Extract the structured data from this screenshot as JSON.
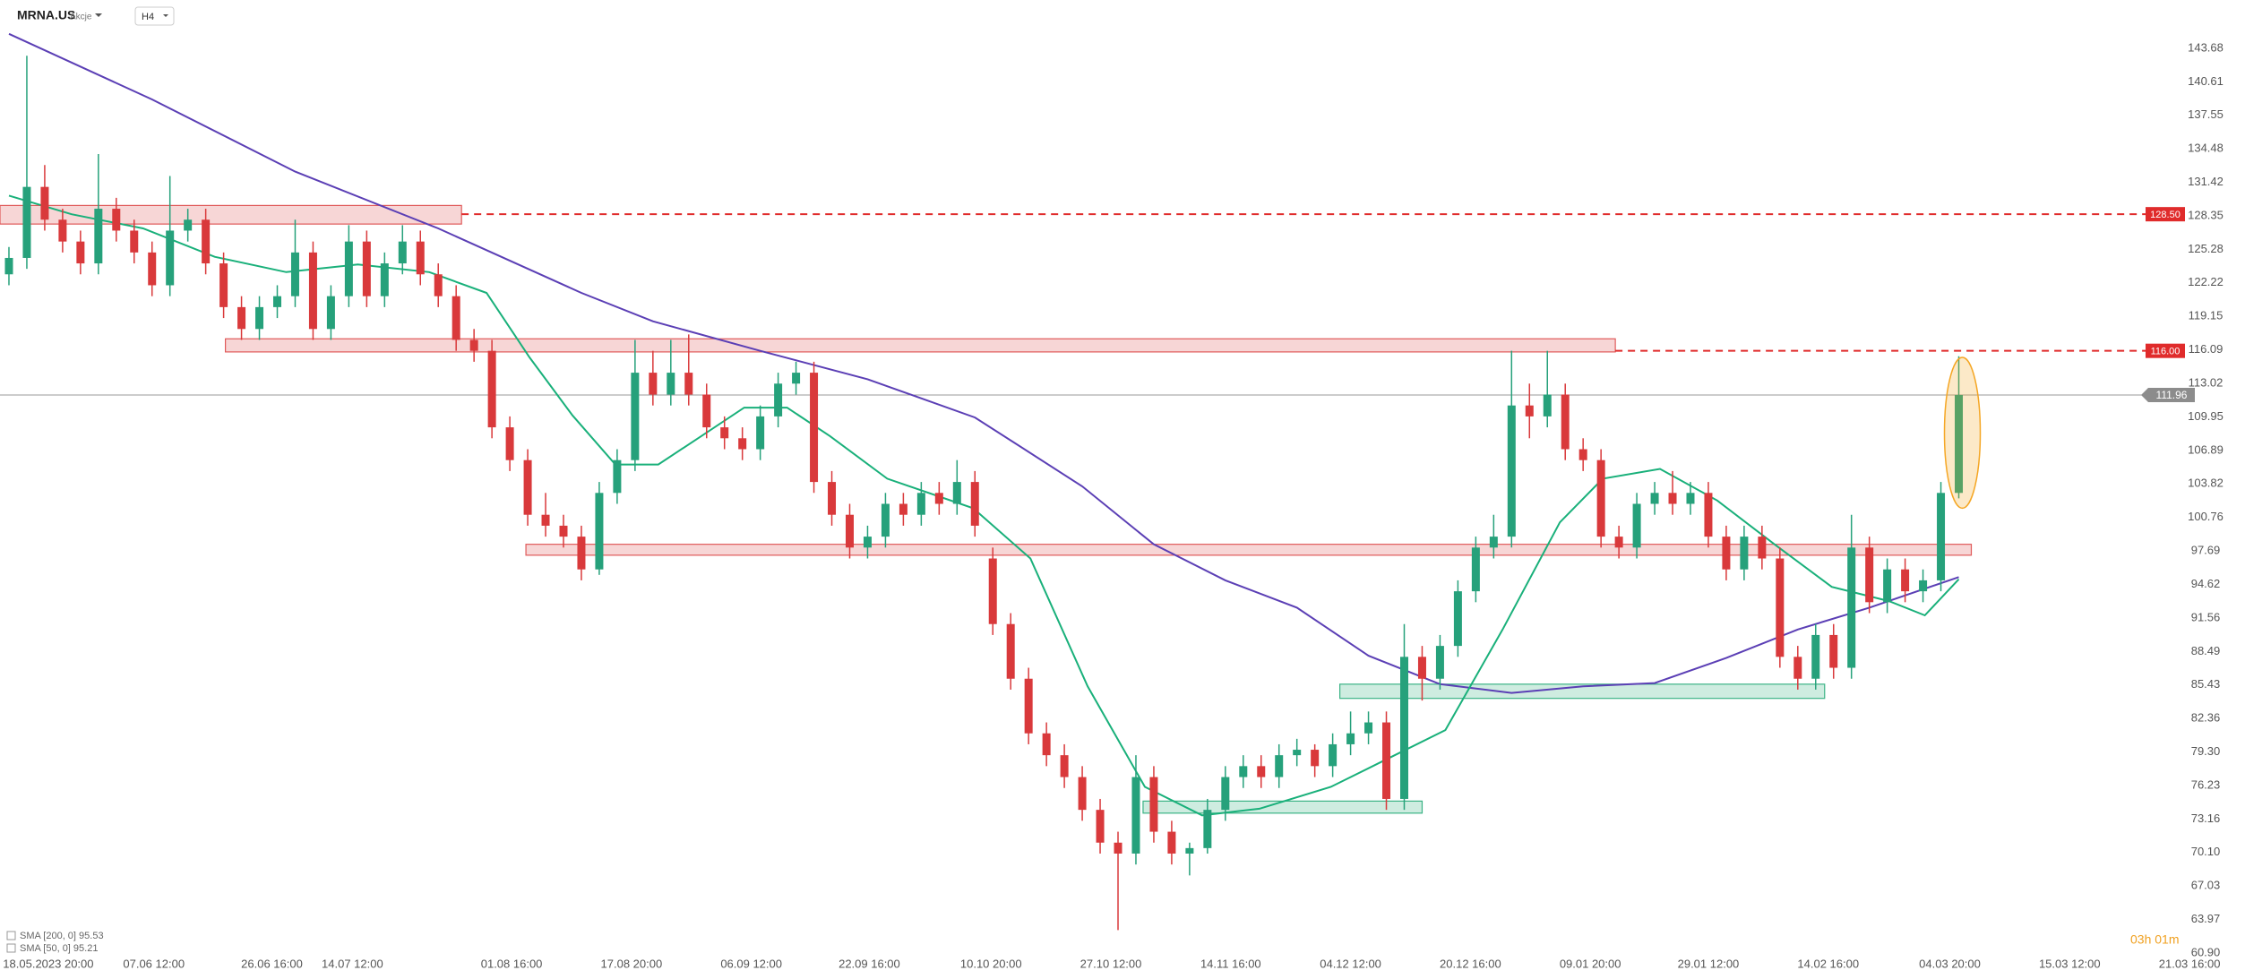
{
  "chart_data": {
    "type": "candlestick",
    "symbol": "MRNA.US",
    "asset_class": "Akcje",
    "timeframe": "H4",
    "countdown": "03h 01m",
    "up_color": "#26a17b",
    "down_color": "#d9393b",
    "xlim": [
      -0.5,
      125
    ],
    "ylim": [
      60.9,
      148.1
    ],
    "yticks": [
      143.68,
      140.61,
      137.55,
      134.48,
      131.42,
      128.35,
      125.28,
      122.22,
      119.15,
      116.09,
      113.02,
      109.95,
      106.89,
      103.82,
      100.76,
      97.69,
      94.62,
      91.56,
      88.49,
      85.43,
      82.36,
      {
        "value": 79.3,
        "label": "79.30"
      },
      76.23,
      73.16,
      {
        "value": 70.1,
        "label": "70.10"
      },
      67.03,
      63.97,
      {
        "value": 60.9,
        "label": "60.90"
      }
    ],
    "xticks": [
      {
        "value": 2.2,
        "label": "18.05.2023 20:00"
      },
      {
        "value": 8.1,
        "label": "07.06 12:00"
      },
      {
        "value": 14.7,
        "label": "26.06 16:00"
      },
      {
        "value": 19.2,
        "label": "14.07 12:00"
      },
      {
        "value": 28.1,
        "label": "01.08 16:00"
      },
      {
        "value": 34.8,
        "label": "17.08 20:00"
      },
      {
        "value": 41.5,
        "label": "06.09 12:00"
      },
      {
        "value": 48.1,
        "label": "22.09 16:00"
      },
      {
        "value": 54.9,
        "label": "10.10 20:00"
      },
      {
        "value": 61.6,
        "label": "27.10 12:00"
      },
      {
        "value": 68.3,
        "label": "14.11 16:00"
      },
      {
        "value": 75,
        "label": "04.12 12:00"
      },
      {
        "value": 81.7,
        "label": "20.12 16:00"
      },
      {
        "value": 88.4,
        "label": "09.01 20:00"
      },
      {
        "value": 95,
        "label": "29.01 12:00"
      },
      {
        "value": 101.7,
        "label": "14.02 16:00"
      },
      {
        "value": 108.5,
        "label": "04.03 20:00"
      },
      {
        "value": 115.2,
        "label": "15.03 12:00"
      },
      {
        "value": 121.9,
        "label": "21.03 16:00"
      }
    ],
    "ohlc": [
      [
        123,
        125.5,
        122,
        124.5
      ],
      [
        124.5,
        143,
        123.5,
        131
      ],
      [
        131,
        133,
        127,
        128
      ],
      [
        128,
        129,
        125,
        126
      ],
      [
        126,
        127,
        123,
        124
      ],
      [
        124,
        134,
        123,
        129
      ],
      [
        129,
        130,
        126,
        127
      ],
      [
        127,
        128,
        124,
        125
      ],
      [
        125,
        126,
        121,
        122
      ],
      [
        122,
        132,
        121,
        127
      ],
      [
        127,
        129,
        126,
        128
      ],
      [
        128,
        129,
        123,
        124
      ],
      [
        124,
        125,
        119,
        120
      ],
      [
        120,
        121,
        117,
        118
      ],
      [
        118,
        121,
        117,
        120
      ],
      [
        120,
        122,
        119,
        121
      ],
      [
        121,
        128,
        120,
        125
      ],
      [
        125,
        126,
        117,
        118
      ],
      [
        118,
        122,
        117,
        121
      ],
      [
        121,
        127.5,
        120,
        126
      ],
      [
        126,
        127,
        120,
        121
      ],
      [
        121,
        125,
        120,
        124
      ],
      [
        124,
        127.5,
        123,
        126
      ],
      [
        126,
        127,
        122,
        123
      ],
      [
        123,
        124,
        120,
        121
      ],
      [
        121,
        122,
        116,
        117
      ],
      [
        117,
        118,
        115,
        116
      ],
      [
        116,
        117,
        108,
        109
      ],
      [
        109,
        110,
        105,
        106
      ],
      [
        106,
        107,
        100,
        101
      ],
      [
        101,
        103,
        99,
        100
      ],
      [
        100,
        101,
        98,
        99
      ],
      [
        99,
        100,
        95,
        96
      ],
      [
        96,
        104,
        95.5,
        103
      ],
      [
        103,
        107,
        102,
        106
      ],
      [
        106,
        117,
        105,
        114
      ],
      [
        114,
        116,
        111,
        112
      ],
      [
        112,
        117,
        111,
        114
      ],
      [
        114,
        117.5,
        111,
        112
      ],
      [
        112,
        113,
        108,
        109
      ],
      [
        109,
        110,
        107,
        108
      ],
      [
        108,
        109,
        106,
        107
      ],
      [
        107,
        111,
        106,
        110
      ],
      [
        110,
        114,
        109,
        113
      ],
      [
        113,
        115,
        112,
        114
      ],
      [
        114,
        115,
        103,
        104
      ],
      [
        104,
        105,
        100,
        101
      ],
      [
        101,
        102,
        97,
        98
      ],
      [
        98,
        100,
        97,
        99
      ],
      [
        99,
        103,
        98,
        102
      ],
      [
        102,
        103,
        100,
        101
      ],
      [
        101,
        104,
        100,
        103
      ],
      [
        103,
        104,
        101,
        102
      ],
      [
        102,
        106,
        101,
        104
      ],
      [
        104,
        105,
        99,
        100
      ],
      [
        97,
        98,
        90,
        91
      ],
      [
        91,
        92,
        85,
        86
      ],
      [
        86,
        87,
        80,
        81
      ],
      [
        81,
        82,
        78,
        79
      ],
      [
        79,
        80,
        76,
        77
      ],
      [
        77,
        78,
        73,
        74
      ],
      [
        74,
        75,
        70,
        71
      ],
      [
        71,
        72,
        63,
        70
      ],
      [
        70,
        79,
        69,
        77
      ],
      [
        77,
        78,
        71,
        72
      ],
      [
        72,
        73,
        69,
        70
      ],
      [
        70,
        71,
        68,
        70.5
      ],
      [
        70.5,
        75,
        70,
        74
      ],
      [
        74,
        78,
        73,
        77
      ],
      [
        77,
        79,
        76,
        78
      ],
      [
        78,
        79,
        76,
        77
      ],
      [
        77,
        80,
        76,
        79
      ],
      [
        79,
        80.5,
        78,
        79.5
      ],
      [
        79.5,
        80,
        77,
        78
      ],
      [
        78,
        81,
        77,
        80
      ],
      [
        80,
        83,
        79,
        81
      ],
      [
        81,
        83,
        80,
        82
      ],
      [
        82,
        83,
        74,
        75
      ],
      [
        75,
        91,
        74,
        88
      ],
      [
        88,
        89,
        84,
        86
      ],
      [
        86,
        90,
        85,
        89
      ],
      [
        89,
        95,
        88,
        94
      ],
      [
        94,
        99,
        93,
        98
      ],
      [
        98,
        101,
        97,
        99
      ],
      [
        99,
        116,
        98,
        111
      ],
      [
        111,
        113,
        108,
        110
      ],
      [
        110,
        116,
        109,
        112
      ],
      [
        112,
        113,
        106,
        107
      ],
      [
        107,
        108,
        105,
        106
      ],
      [
        106,
        107,
        98,
        99
      ],
      [
        99,
        100,
        97,
        98
      ],
      [
        98,
        103,
        97,
        102
      ],
      [
        102,
        104,
        101,
        103
      ],
      [
        103,
        105,
        101,
        102
      ],
      [
        102,
        104,
        101,
        103
      ],
      [
        103,
        104,
        98,
        99
      ],
      [
        99,
        100,
        95,
        96
      ],
      [
        96,
        100,
        95,
        99
      ],
      [
        99,
        100,
        96,
        97
      ],
      [
        97,
        98,
        87,
        88
      ],
      [
        88,
        89,
        85,
        86
      ],
      [
        86,
        91,
        85,
        90
      ],
      [
        90,
        91,
        86,
        87
      ],
      [
        87,
        101,
        86,
        98
      ],
      [
        98,
        99,
        92,
        93
      ],
      [
        93,
        97,
        92,
        96
      ],
      [
        96,
        97,
        93,
        94
      ],
      [
        94,
        96,
        93,
        95
      ],
      [
        95,
        104,
        94,
        103
      ],
      [
        103,
        115.5,
        102.5,
        111.96
      ]
    ],
    "series": [
      {
        "name": "SMA [200, 0] 95.53",
        "color": "#5b3fb5",
        "x": [
          0,
          8,
          16,
          24,
          32,
          36,
          42,
          48,
          54,
          60,
          64,
          68,
          72,
          76,
          80,
          84,
          88,
          92,
          96,
          100,
          104,
          109
        ],
        "values": [
          145,
          139,
          132.4,
          127.2,
          121.3,
          118.7,
          116,
          113.4,
          109.9,
          103.6,
          98.3,
          95,
          92.5,
          88.1,
          85.5,
          84.7,
          85.3,
          85.6,
          87.9,
          90.5,
          92.5,
          95.3
        ]
      },
      {
        "name": "SMA [50, 0] 95.21",
        "color": "#19b07a",
        "x": [
          0,
          3.5,
          7.5,
          11.5,
          15.5,
          19.5,
          23.5,
          26.7,
          29.1,
          31.5,
          33.9,
          36.3,
          38.7,
          41.1,
          43.5,
          45.9,
          49.1,
          53.9,
          57.1,
          60.3,
          63.5,
          66.7,
          69.9,
          73.9,
          77.1,
          80.3,
          83.5,
          86.7,
          89.1,
          92.3,
          95.5,
          98.7,
          101.9,
          105.1,
          107.1,
          109
        ],
        "values": [
          130.2,
          128.5,
          127.2,
          124.6,
          123.2,
          123.9,
          123.2,
          121.3,
          115.4,
          110.1,
          105.6,
          105.6,
          108.2,
          110.8,
          110.8,
          108.2,
          104.3,
          101.6,
          97,
          85.3,
          76.1,
          73.5,
          74.1,
          76.1,
          78.7,
          81.3,
          90.5,
          100.3,
          104.3,
          105.2,
          102.3,
          98.3,
          94.4,
          93.1,
          91.8,
          95.1
        ]
      }
    ],
    "zones": [
      {
        "x": [
          -0.5,
          25.3
        ],
        "y": [
          127.6,
          129.3
        ],
        "color": "#e05a5a"
      },
      {
        "x": [
          12.1,
          89.8
        ],
        "y": [
          115.9,
          117.1
        ],
        "color": "#e05a5a"
      },
      {
        "x": [
          28.9,
          109.7
        ],
        "y": [
          97.3,
          98.3
        ],
        "color": "#e05a5a"
      },
      {
        "x": [
          74.4,
          101.5
        ],
        "y": [
          84.2,
          85.5
        ],
        "color": "#3bb385"
      },
      {
        "x": [
          63.4,
          79
        ],
        "y": [
          73.7,
          74.8
        ],
        "color": "#3bb385"
      }
    ],
    "levels": [
      {
        "value": 128.5,
        "label": "128.50",
        "x_start": 25.3,
        "color": "#e02b2b"
      },
      {
        "value": 116,
        "label": "116.00",
        "x_start": 89.8,
        "color": "#e02b2b"
      }
    ],
    "last_price": 111.96,
    "highlight": {
      "x": 109.2,
      "y": [
        101.6,
        115.4
      ],
      "color": "#f5a623"
    }
  }
}
